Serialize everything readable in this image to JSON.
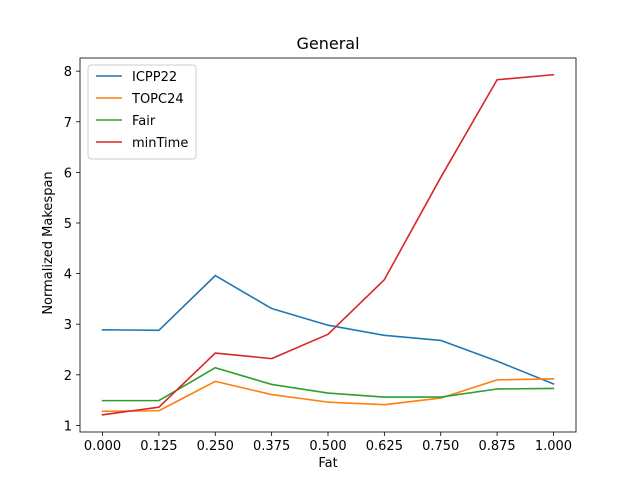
{
  "chart_data": {
    "type": "line",
    "title": "General",
    "xlabel": "Fat",
    "ylabel": "Normalized Makespan",
    "x": [
      0.0,
      0.125,
      0.25,
      0.375,
      0.5,
      0.625,
      0.75,
      0.875,
      1.0
    ],
    "x_tick_labels": [
      "0.000",
      "0.125",
      "0.250",
      "0.375",
      "0.500",
      "0.625",
      "0.750",
      "0.875",
      "1.000"
    ],
    "y_ticks": [
      1,
      2,
      3,
      4,
      5,
      6,
      7,
      8
    ],
    "y_tick_labels": [
      "1",
      "2",
      "3",
      "4",
      "5",
      "6",
      "7",
      "8"
    ],
    "xlim": [
      -0.05,
      1.05
    ],
    "ylim": [
      0.87,
      8.26
    ],
    "grid": false,
    "legend_position": "top-left",
    "series": [
      {
        "name": "ICPP22",
        "color": "#1f77b4",
        "values": [
          2.89,
          2.88,
          3.96,
          3.31,
          2.98,
          2.78,
          2.68,
          2.27,
          1.82
        ]
      },
      {
        "name": "TOPC24",
        "color": "#ff7f0e",
        "values": [
          1.28,
          1.29,
          1.87,
          1.61,
          1.46,
          1.41,
          1.54,
          1.9,
          1.92
        ]
      },
      {
        "name": "Fair",
        "color": "#2ca02c",
        "values": [
          1.49,
          1.49,
          2.14,
          1.81,
          1.64,
          1.56,
          1.56,
          1.72,
          1.73
        ]
      },
      {
        "name": "minTime",
        "color": "#d62728",
        "values": [
          1.21,
          1.36,
          2.43,
          2.32,
          2.8,
          3.88,
          5.9,
          7.83,
          7.93
        ]
      }
    ]
  }
}
